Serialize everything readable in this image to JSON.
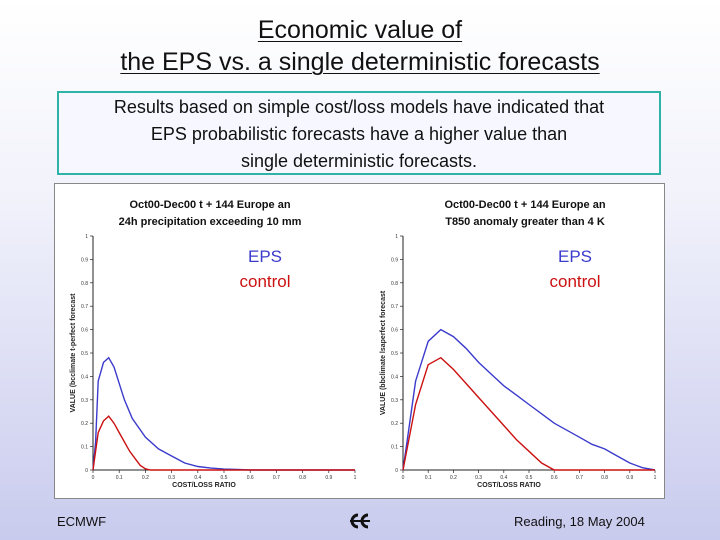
{
  "slide": {
    "title_lines": [
      "Economic value of",
      "the EPS vs. a single deterministic forecasts"
    ],
    "summary_lines": [
      "Results based on simple cost/loss models have indicated that",
      "EPS probabilistic forecasts have a higher value than",
      "single deterministic forecasts."
    ]
  },
  "footer": {
    "left": "ECMWF",
    "right": "Reading, 18 May 2004",
    "logo_icon": "ecmwf-logo-icon"
  },
  "colors": {
    "eps": "#3b3bcc",
    "control": "#cc1111",
    "axis": "#222222",
    "box_border": "#2fb3a9"
  },
  "chart_data": [
    {
      "type": "line",
      "title_lines": [
        "Oct00-Dec00  t + 144   Europe  an",
        "24h precipitation exceeding    10 mm"
      ],
      "xlabel": "COST/LOSS RATIO",
      "ylabel": "VALUE (bcclimate t-perfect forecast",
      "xlim": [
        0,
        1
      ],
      "ylim": [
        0,
        1
      ],
      "x_ticks": [
        "0",
        "0.1",
        "0.2",
        "0.3",
        "0.4",
        "0.5",
        "0.6",
        "0.7",
        "0.8",
        "0.9",
        "1"
      ],
      "y_ticks": [
        "0",
        "0.1",
        "0.2",
        "0.3",
        "0.4",
        "0.5",
        "0.6",
        "0.7",
        "0.8",
        "0.9",
        "1"
      ],
      "series": [
        {
          "name": "EPS",
          "color": "#3b3bcc",
          "x": [
            0,
            0.01,
            0.02,
            0.04,
            0.06,
            0.08,
            0.1,
            0.12,
            0.15,
            0.2,
            0.25,
            0.3,
            0.35,
            0.4,
            0.45,
            0.5,
            0.55,
            0.6,
            0.7,
            0.8,
            0.9,
            1.0
          ],
          "y": [
            0,
            0.12,
            0.38,
            0.46,
            0.48,
            0.44,
            0.37,
            0.3,
            0.22,
            0.14,
            0.09,
            0.06,
            0.03,
            0.015,
            0.008,
            0.004,
            0.002,
            0,
            0,
            0,
            0,
            0
          ]
        },
        {
          "name": "control",
          "color": "#cc1111",
          "x": [
            0,
            0.01,
            0.02,
            0.04,
            0.06,
            0.08,
            0.1,
            0.12,
            0.14,
            0.16,
            0.18,
            0.2,
            0.22,
            0.25,
            0.3,
            0.4,
            0.5,
            0.6,
            0.8,
            1.0
          ],
          "y": [
            0,
            0.08,
            0.16,
            0.21,
            0.23,
            0.2,
            0.16,
            0.12,
            0.08,
            0.05,
            0.02,
            0.005,
            0,
            0,
            0,
            0,
            0,
            0,
            0,
            0
          ]
        }
      ]
    },
    {
      "type": "line",
      "title_lines": [
        "Oct00-Dec00  t + 144   Europe  an",
        "T850 anomaly greater than      4 K"
      ],
      "xlabel": "COST/LOSS RATIO",
      "ylabel": "VALUE (bbclimate lsaperfect forecast",
      "xlim": [
        0,
        1
      ],
      "ylim": [
        0,
        1
      ],
      "x_ticks": [
        "0",
        "0.1",
        "0.2",
        "0.3",
        "0.4",
        "0.5",
        "0.6",
        "0.7",
        "0.8",
        "0.9",
        "1"
      ],
      "y_ticks": [
        "0",
        "0.1",
        "0.2",
        "0.3",
        "0.4",
        "0.5",
        "0.6",
        "0.7",
        "0.8",
        "0.9",
        "1"
      ],
      "series": [
        {
          "name": "EPS",
          "color": "#3b3bcc",
          "x": [
            0,
            0.02,
            0.05,
            0.1,
            0.15,
            0.2,
            0.25,
            0.3,
            0.35,
            0.4,
            0.45,
            0.5,
            0.55,
            0.6,
            0.65,
            0.7,
            0.75,
            0.8,
            0.85,
            0.9,
            0.95,
            1.0
          ],
          "y": [
            0,
            0.15,
            0.38,
            0.55,
            0.6,
            0.57,
            0.52,
            0.46,
            0.41,
            0.36,
            0.32,
            0.28,
            0.24,
            0.2,
            0.17,
            0.14,
            0.11,
            0.09,
            0.06,
            0.03,
            0.01,
            0
          ]
        },
        {
          "name": "control",
          "color": "#cc1111",
          "x": [
            0,
            0.05,
            0.1,
            0.15,
            0.2,
            0.25,
            0.3,
            0.35,
            0.4,
            0.45,
            0.5,
            0.55,
            0.6,
            0.65,
            0.7,
            0.8,
            0.9,
            1.0
          ],
          "y": [
            0,
            0.28,
            0.45,
            0.48,
            0.43,
            0.37,
            0.31,
            0.25,
            0.19,
            0.13,
            0.08,
            0.03,
            0,
            0,
            0,
            0,
            0,
            0
          ]
        }
      ]
    }
  ]
}
